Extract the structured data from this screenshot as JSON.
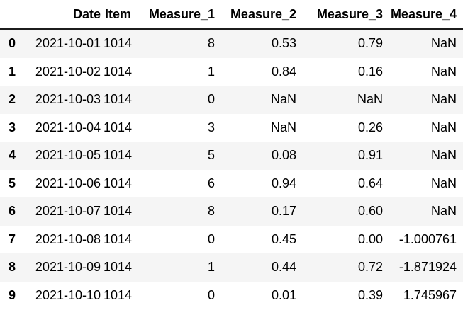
{
  "colors": {
    "background": "#ffffff",
    "text": "#000000",
    "row_stripe": "#f5f5f5",
    "header_border": "#1c1c1c"
  },
  "table": {
    "index_header": ""
  },
  "chart_data": {
    "type": "table",
    "title": "",
    "columns": [
      "Date",
      "Item",
      "Measure_1",
      "Measure_2",
      "Measure_3",
      "Measure_4"
    ],
    "index": [
      "0",
      "1",
      "2",
      "3",
      "4",
      "5",
      "6",
      "7",
      "8",
      "9"
    ],
    "rows": [
      [
        "2021-10-01",
        "1014",
        "8",
        "0.53",
        "0.79",
        "NaN"
      ],
      [
        "2021-10-02",
        "1014",
        "1",
        "0.84",
        "0.16",
        "NaN"
      ],
      [
        "2021-10-03",
        "1014",
        "0",
        "NaN",
        "NaN",
        "NaN"
      ],
      [
        "2021-10-04",
        "1014",
        "3",
        "NaN",
        "0.26",
        "NaN"
      ],
      [
        "2021-10-05",
        "1014",
        "5",
        "0.08",
        "0.91",
        "NaN"
      ],
      [
        "2021-10-06",
        "1014",
        "6",
        "0.94",
        "0.64",
        "NaN"
      ],
      [
        "2021-10-07",
        "1014",
        "8",
        "0.17",
        "0.60",
        "NaN"
      ],
      [
        "2021-10-08",
        "1014",
        "0",
        "0.45",
        "0.00",
        "-1.000761"
      ],
      [
        "2021-10-09",
        "1014",
        "1",
        "0.44",
        "0.72",
        "-1.871924"
      ],
      [
        "2021-10-10",
        "1014",
        "0",
        "0.01",
        "0.39",
        "1.745967"
      ]
    ],
    "layout_hints": {
      "row_striping": "even index rows shaded",
      "alignment": "all cells right-aligned",
      "index_style": "bold",
      "header_style": "bold with dark bottom border"
    }
  }
}
